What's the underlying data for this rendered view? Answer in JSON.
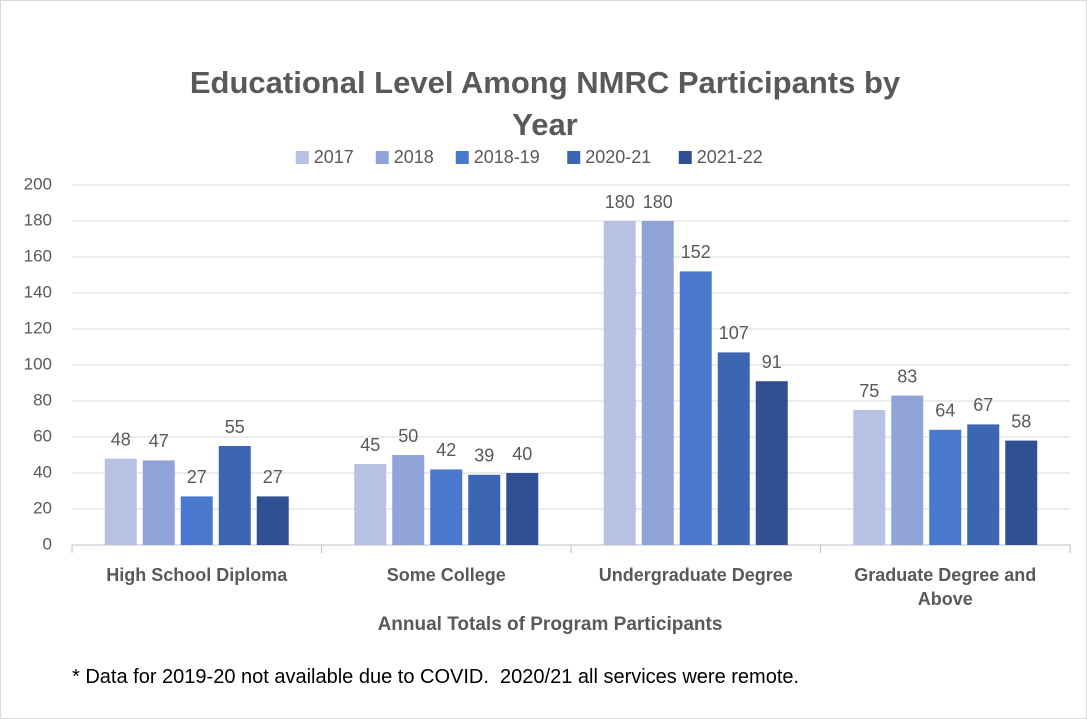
{
  "chart_data": {
    "type": "bar",
    "title": "Educational Level Among NMRC Participants by Year",
    "x_label": "Annual Totals of Program Participants",
    "note": "* Data for 2019-20 not available due to COVID.  2020/21 all services were remote.",
    "categories": [
      "High School Diploma",
      "Some College",
      "Undergraduate Degree",
      "Graduate Degree and Above"
    ],
    "series": [
      {
        "name": "2017",
        "color": "#b7c1e3",
        "values": [
          48,
          45,
          180,
          75
        ]
      },
      {
        "name": "2018",
        "color": "#8fa3d8",
        "values": [
          47,
          50,
          180,
          83
        ]
      },
      {
        "name": "2018-19",
        "color": "#4a78cf",
        "values": [
          27,
          42,
          152,
          64
        ]
      },
      {
        "name": "2020-21",
        "color": "#3c66b1",
        "values": [
          55,
          39,
          107,
          67
        ]
      },
      {
        "name": "2021-22",
        "color": "#2f5193",
        "values": [
          27,
          40,
          91,
          58
        ]
      }
    ],
    "ylim": [
      0,
      200
    ],
    "yticks": [
      0,
      20,
      40,
      60,
      80,
      100,
      120,
      140,
      160,
      180,
      200
    ],
    "grid": true,
    "legend": "top",
    "data_labels": true
  }
}
